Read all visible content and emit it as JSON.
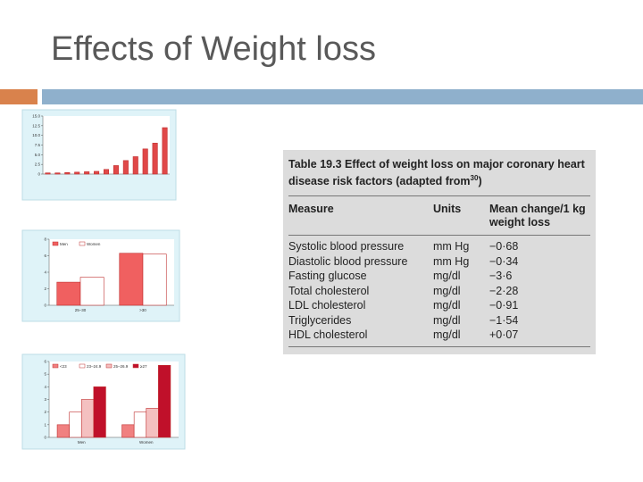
{
  "title": "Effects of Weight loss",
  "table": {
    "caption_lead": "Table 19.3  Effect of weight loss on major coronary heart disease risk factors (adapted from",
    "caption_ref": "30",
    "caption_tail": ")",
    "header": [
      "Measure",
      "Units",
      "Mean change/1 kg weight loss"
    ],
    "rows": [
      [
        "Systolic blood pressure",
        "mm Hg",
        "−0·68"
      ],
      [
        "Diastolic blood pressure",
        "mm Hg",
        "−0·34"
      ],
      [
        "Fasting glucose",
        "mg/dl",
        "−3·6"
      ],
      [
        "Total cholesterol",
        "mg/dl",
        "−2·28"
      ],
      [
        "LDL cholesterol",
        "mg/dl",
        "−0·91"
      ],
      [
        "Triglycerides",
        "mg/dl",
        "−1·54"
      ],
      [
        "HDL cholesterol",
        "mg/dl",
        "+0·07"
      ]
    ]
  },
  "chart_data": [
    {
      "type": "bar",
      "color": "#e04848",
      "categories": [
        null,
        null,
        null,
        null,
        null,
        null,
        null,
        null,
        null,
        null,
        null,
        null,
        null
      ],
      "values": [
        0.3,
        0.3,
        0.4,
        0.5,
        0.6,
        0.7,
        1.2,
        2.2,
        3.5,
        4.5,
        6.5,
        8,
        12
      ],
      "ylim": [
        0,
        15
      ],
      "yticks": [
        0,
        {
          "value": 2.5,
          "label": "2.5"
        },
        {
          "value": 5,
          "label": "5.0"
        },
        {
          "value": 7.5,
          "label": "7.5"
        },
        {
          "value": 10,
          "label": "10.0"
        },
        {
          "value": 12.5,
          "label": "12.5"
        },
        {
          "value": 15,
          "label": "15.0"
        }
      ]
    },
    {
      "type": "bar",
      "categories": [
        "25–30",
        ">30"
      ],
      "series": [
        {
          "name": "Men",
          "color": "#f06060",
          "values": [
            2.8,
            6.3
          ]
        },
        {
          "name": "Women",
          "color": "#ffffff",
          "values": [
            3.4,
            6.2
          ]
        }
      ],
      "ylim": [
        0,
        8
      ],
      "yticks": [
        0,
        2,
        4,
        6,
        8
      ]
    },
    {
      "type": "bar",
      "categories": [
        "Men",
        "Women"
      ],
      "series": [
        {
          "name": "<23",
          "color": "#f08080",
          "values": [
            1,
            1
          ]
        },
        {
          "name": "23–24.9",
          "color": "#ffffff",
          "values": [
            2,
            2
          ]
        },
        {
          "name": "25–26.9",
          "color": "#f4c0c0",
          "values": [
            3,
            2.3
          ]
        },
        {
          "name": "≥27",
          "color": "#c0102a",
          "values": [
            4,
            5.7
          ]
        }
      ],
      "ylim": [
        0,
        6
      ],
      "yticks": [
        0,
        1,
        2,
        3,
        4,
        5,
        6
      ]
    }
  ]
}
